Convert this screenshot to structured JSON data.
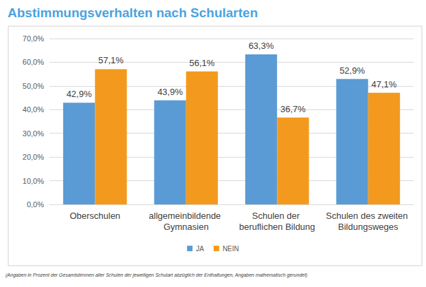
{
  "chart_data": {
    "type": "bar",
    "title": "Abstimmungsverhalten nach Schularten",
    "annotations": [
      "(Angaben in Prozent der Gesamtstimmen aller Schulen der jeweiligen Schulart abzüglich der Enthaltungen, Angaben mathematisch gerundet)"
    ],
    "categories": [
      "Oberschulen",
      "allgemeinbildende Gymnasien",
      "Schulen der beruflichen Bildung",
      "Schulen des zweiten Bildungsweges"
    ],
    "series": [
      {
        "name": "JA",
        "color": "#5b9bd5",
        "values": [
          42.9,
          43.9,
          63.3,
          52.9
        ],
        "value_labels": [
          "42,9%",
          "43,9%",
          "63,3%",
          "52,9%"
        ]
      },
      {
        "name": "NEIN",
        "color": "#f39a1e",
        "values": [
          57.1,
          56.1,
          36.7,
          47.1
        ],
        "value_labels": [
          "57,1%",
          "56,1%",
          "36,7%",
          "47,1%"
        ]
      }
    ],
    "ylim": [
      0,
      70
    ],
    "yticks": [
      {
        "value": 0,
        "label": "0,0%"
      },
      {
        "value": 10,
        "label": "10,0%"
      },
      {
        "value": 20,
        "label": "20,0%"
      },
      {
        "value": 30,
        "label": "30,0%"
      },
      {
        "value": 40,
        "label": "40,0%"
      },
      {
        "value": 50,
        "label": "50,0%"
      },
      {
        "value": 60,
        "label": "60,0%"
      },
      {
        "value": 70,
        "label": "70,0%"
      }
    ],
    "grid": true,
    "legend": "bottom",
    "data_labels": true
  }
}
